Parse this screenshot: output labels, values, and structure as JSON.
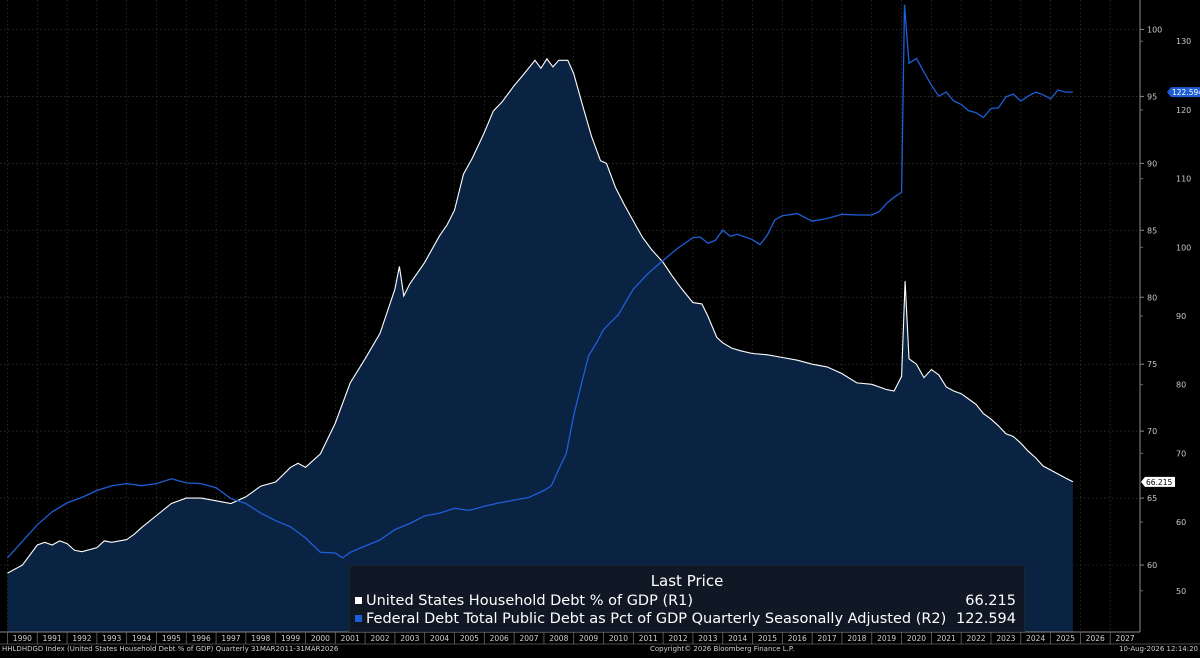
{
  "chart_data": {
    "type": "area",
    "x_axis": {
      "tick_labels": [
        "1990",
        "1991",
        "1992",
        "1993",
        "1994",
        "1995",
        "1996",
        "1997",
        "1998",
        "1999",
        "2000",
        "2001",
        "2002",
        "2003",
        "2004",
        "2005",
        "2006",
        "2007",
        "2008",
        "2009",
        "2010",
        "2011",
        "2012",
        "2013",
        "2014",
        "2015",
        "2016",
        "2017",
        "2018",
        "2019",
        "2020",
        "2021",
        "2022",
        "2023",
        "2024",
        "2025",
        "2026",
        "2027"
      ],
      "range": [
        1989.75,
        2028.0
      ]
    },
    "axes": {
      "R1": {
        "range": [
          55,
          102.2
        ],
        "ticks": [
          60,
          65,
          70,
          75,
          80,
          85,
          90,
          95,
          100
        ]
      },
      "R2": {
        "range": [
          44,
          136
        ],
        "ticks": [
          50,
          60,
          70,
          80,
          90,
          100,
          110,
          120,
          130
        ]
      }
    },
    "grid": true,
    "series": [
      {
        "name": "United States Household Debt % of GDP",
        "axis": "R1",
        "style": "filled-area",
        "color": "#ffffff",
        "fill": "#0a2342",
        "last_value": "66.215",
        "points": [
          [
            1990.0,
            59.4
          ],
          [
            1990.5,
            60.0
          ],
          [
            1991.0,
            61.5
          ],
          [
            1991.25,
            61.7
          ],
          [
            1991.5,
            61.5
          ],
          [
            1991.75,
            61.8
          ],
          [
            1992.0,
            61.6
          ],
          [
            1992.25,
            61.1
          ],
          [
            1992.5,
            61.0
          ],
          [
            1993.0,
            61.3
          ],
          [
            1993.25,
            61.8
          ],
          [
            1993.5,
            61.7
          ],
          [
            1994.0,
            61.9
          ],
          [
            1994.25,
            62.3
          ],
          [
            1994.5,
            62.8
          ],
          [
            1995.0,
            63.7
          ],
          [
            1995.5,
            64.6
          ],
          [
            1996.0,
            65.0
          ],
          [
            1996.5,
            65.0
          ],
          [
            1997.0,
            64.8
          ],
          [
            1997.5,
            64.6
          ],
          [
            1998.0,
            65.1
          ],
          [
            1998.5,
            65.9
          ],
          [
            1999.0,
            66.2
          ],
          [
            1999.5,
            67.3
          ],
          [
            1999.75,
            67.6
          ],
          [
            2000.0,
            67.3
          ],
          [
            2000.5,
            68.3
          ],
          [
            2001.0,
            70.6
          ],
          [
            2001.5,
            73.6
          ],
          [
            2002.0,
            75.4
          ],
          [
            2002.5,
            77.3
          ],
          [
            2003.0,
            80.6
          ],
          [
            2003.15,
            82.3
          ],
          [
            2003.3,
            80.1
          ],
          [
            2003.5,
            81.0
          ],
          [
            2004.0,
            82.6
          ],
          [
            2004.5,
            84.6
          ],
          [
            2004.75,
            85.4
          ],
          [
            2005.0,
            86.5
          ],
          [
            2005.3,
            89.2
          ],
          [
            2005.6,
            90.4
          ],
          [
            2006.0,
            92.3
          ],
          [
            2006.3,
            93.9
          ],
          [
            2006.6,
            94.6
          ],
          [
            2007.0,
            95.8
          ],
          [
            2007.3,
            96.6
          ],
          [
            2007.7,
            97.7
          ],
          [
            2007.9,
            97.1
          ],
          [
            2008.1,
            97.8
          ],
          [
            2008.3,
            97.2
          ],
          [
            2008.5,
            97.7
          ],
          [
            2008.8,
            97.7
          ],
          [
            2009.0,
            96.7
          ],
          [
            2009.3,
            94.3
          ],
          [
            2009.6,
            92.0
          ],
          [
            2009.9,
            90.2
          ],
          [
            2010.1,
            90.0
          ],
          [
            2010.4,
            88.2
          ],
          [
            2010.7,
            86.9
          ],
          [
            2011.0,
            85.7
          ],
          [
            2011.3,
            84.5
          ],
          [
            2011.6,
            83.6
          ],
          [
            2012.0,
            82.6
          ],
          [
            2012.3,
            81.6
          ],
          [
            2012.6,
            80.7
          ],
          [
            2013.0,
            79.6
          ],
          [
            2013.3,
            79.5
          ],
          [
            2013.5,
            78.6
          ],
          [
            2013.8,
            77.0
          ],
          [
            2014.0,
            76.6
          ],
          [
            2014.3,
            76.2
          ],
          [
            2014.6,
            76.0
          ],
          [
            2015.0,
            75.8
          ],
          [
            2015.5,
            75.7
          ],
          [
            2016.0,
            75.5
          ],
          [
            2016.5,
            75.3
          ],
          [
            2017.0,
            75.0
          ],
          [
            2017.5,
            74.8
          ],
          [
            2018.0,
            74.3
          ],
          [
            2018.5,
            73.6
          ],
          [
            2019.0,
            73.5
          ],
          [
            2019.5,
            73.1
          ],
          [
            2019.75,
            73.0
          ],
          [
            2020.0,
            74.1
          ],
          [
            2020.12,
            81.2
          ],
          [
            2020.25,
            75.4
          ],
          [
            2020.5,
            75.0
          ],
          [
            2020.75,
            74.0
          ],
          [
            2021.0,
            74.6
          ],
          [
            2021.25,
            74.2
          ],
          [
            2021.5,
            73.3
          ],
          [
            2021.75,
            73.0
          ],
          [
            2022.0,
            72.8
          ],
          [
            2022.25,
            72.4
          ],
          [
            2022.5,
            72.0
          ],
          [
            2022.75,
            71.3
          ],
          [
            2023.0,
            70.9
          ],
          [
            2023.25,
            70.4
          ],
          [
            2023.5,
            69.8
          ],
          [
            2023.75,
            69.6
          ],
          [
            2024.0,
            69.1
          ],
          [
            2024.25,
            68.5
          ],
          [
            2024.5,
            68.0
          ],
          [
            2024.75,
            67.4
          ],
          [
            2025.0,
            67.1
          ],
          [
            2025.25,
            66.8
          ],
          [
            2025.5,
            66.5
          ],
          [
            2025.75,
            66.215
          ]
        ]
      },
      {
        "name": "Federal Debt Total Public Debt as Pct of GDP Quarterly Seasonally Adjusted",
        "axis": "R2",
        "style": "line",
        "color": "#1e5ed6",
        "last_value": "122.594",
        "points": [
          [
            1990.0,
            54.8
          ],
          [
            1990.5,
            57.2
          ],
          [
            1991.0,
            59.6
          ],
          [
            1991.5,
            61.5
          ],
          [
            1992.0,
            62.8
          ],
          [
            1992.5,
            63.6
          ],
          [
            1993.0,
            64.6
          ],
          [
            1993.5,
            65.3
          ],
          [
            1994.0,
            65.6
          ],
          [
            1994.5,
            65.3
          ],
          [
            1995.0,
            65.6
          ],
          [
            1995.5,
            66.3
          ],
          [
            1996.0,
            65.7
          ],
          [
            1996.5,
            65.6
          ],
          [
            1997.0,
            65.0
          ],
          [
            1997.5,
            63.4
          ],
          [
            1998.0,
            62.7
          ],
          [
            1998.5,
            61.3
          ],
          [
            1999.0,
            60.2
          ],
          [
            1999.5,
            59.3
          ],
          [
            2000.0,
            57.7
          ],
          [
            2000.5,
            55.6
          ],
          [
            2001.0,
            55.5
          ],
          [
            2001.25,
            54.8
          ],
          [
            2001.5,
            55.6
          ],
          [
            2002.0,
            56.5
          ],
          [
            2002.5,
            57.4
          ],
          [
            2003.0,
            58.9
          ],
          [
            2003.5,
            59.8
          ],
          [
            2004.0,
            60.9
          ],
          [
            2004.5,
            61.3
          ],
          [
            2005.0,
            62.0
          ],
          [
            2005.5,
            61.7
          ],
          [
            2006.0,
            62.3
          ],
          [
            2006.5,
            62.8
          ],
          [
            2007.0,
            63.2
          ],
          [
            2007.5,
            63.6
          ],
          [
            2008.0,
            64.6
          ],
          [
            2008.25,
            65.3
          ],
          [
            2008.5,
            67.7
          ],
          [
            2008.75,
            70.0
          ],
          [
            2009.0,
            75.5
          ],
          [
            2009.25,
            80.0
          ],
          [
            2009.5,
            84.2
          ],
          [
            2009.75,
            86.0
          ],
          [
            2010.0,
            88.0
          ],
          [
            2010.5,
            90.2
          ],
          [
            2011.0,
            93.9
          ],
          [
            2011.5,
            96.2
          ],
          [
            2012.0,
            98.1
          ],
          [
            2012.5,
            99.9
          ],
          [
            2013.0,
            101.4
          ],
          [
            2013.25,
            101.5
          ],
          [
            2013.5,
            100.6
          ],
          [
            2013.75,
            101.0
          ],
          [
            2014.0,
            102.5
          ],
          [
            2014.25,
            101.6
          ],
          [
            2014.5,
            101.9
          ],
          [
            2015.0,
            101.1
          ],
          [
            2015.25,
            100.4
          ],
          [
            2015.5,
            101.8
          ],
          [
            2015.75,
            104.0
          ],
          [
            2016.0,
            104.6
          ],
          [
            2016.5,
            104.9
          ],
          [
            2017.0,
            103.8
          ],
          [
            2017.5,
            104.2
          ],
          [
            2018.0,
            104.8
          ],
          [
            2018.5,
            104.7
          ],
          [
            2019.0,
            104.7
          ],
          [
            2019.25,
            105.2
          ],
          [
            2019.5,
            106.4
          ],
          [
            2019.75,
            107.3
          ],
          [
            2020.0,
            108.0
          ],
          [
            2020.1,
            135.3
          ],
          [
            2020.25,
            126.8
          ],
          [
            2020.5,
            127.5
          ],
          [
            2020.75,
            125.5
          ],
          [
            2021.0,
            123.6
          ],
          [
            2021.25,
            122.0
          ],
          [
            2021.5,
            122.6
          ],
          [
            2021.75,
            121.3
          ],
          [
            2022.0,
            120.8
          ],
          [
            2022.25,
            119.9
          ],
          [
            2022.5,
            119.6
          ],
          [
            2022.75,
            118.9
          ],
          [
            2023.0,
            120.2
          ],
          [
            2023.25,
            120.3
          ],
          [
            2023.5,
            121.9
          ],
          [
            2023.75,
            122.3
          ],
          [
            2024.0,
            121.3
          ],
          [
            2024.25,
            122.0
          ],
          [
            2024.5,
            122.6
          ],
          [
            2024.75,
            122.2
          ],
          [
            2025.0,
            121.6
          ],
          [
            2025.25,
            122.9
          ],
          [
            2025.5,
            122.6
          ],
          [
            2025.75,
            122.594
          ]
        ]
      }
    ]
  },
  "legend": {
    "title": "Last Price",
    "rows": [
      {
        "label": "United States Household Debt % of GDP  (R1)",
        "value": "66.215",
        "color": "#ffffff"
      },
      {
        "label": "Federal Debt Total Public Debt as Pct of GDP Quarterly Seasonally Adjusted  (R2)",
        "value": "122.594",
        "color": "#1e5ed6"
      }
    ]
  },
  "footer": {
    "source": "HHLDHDGD Index (United States Household Debt % of GDP) Quarterly 31MAR2011-31MAR2026",
    "copyright": "Copyright© 2026 Bloomberg Finance L.P.",
    "timestamp": "10-Aug-2026 12:14:20"
  }
}
